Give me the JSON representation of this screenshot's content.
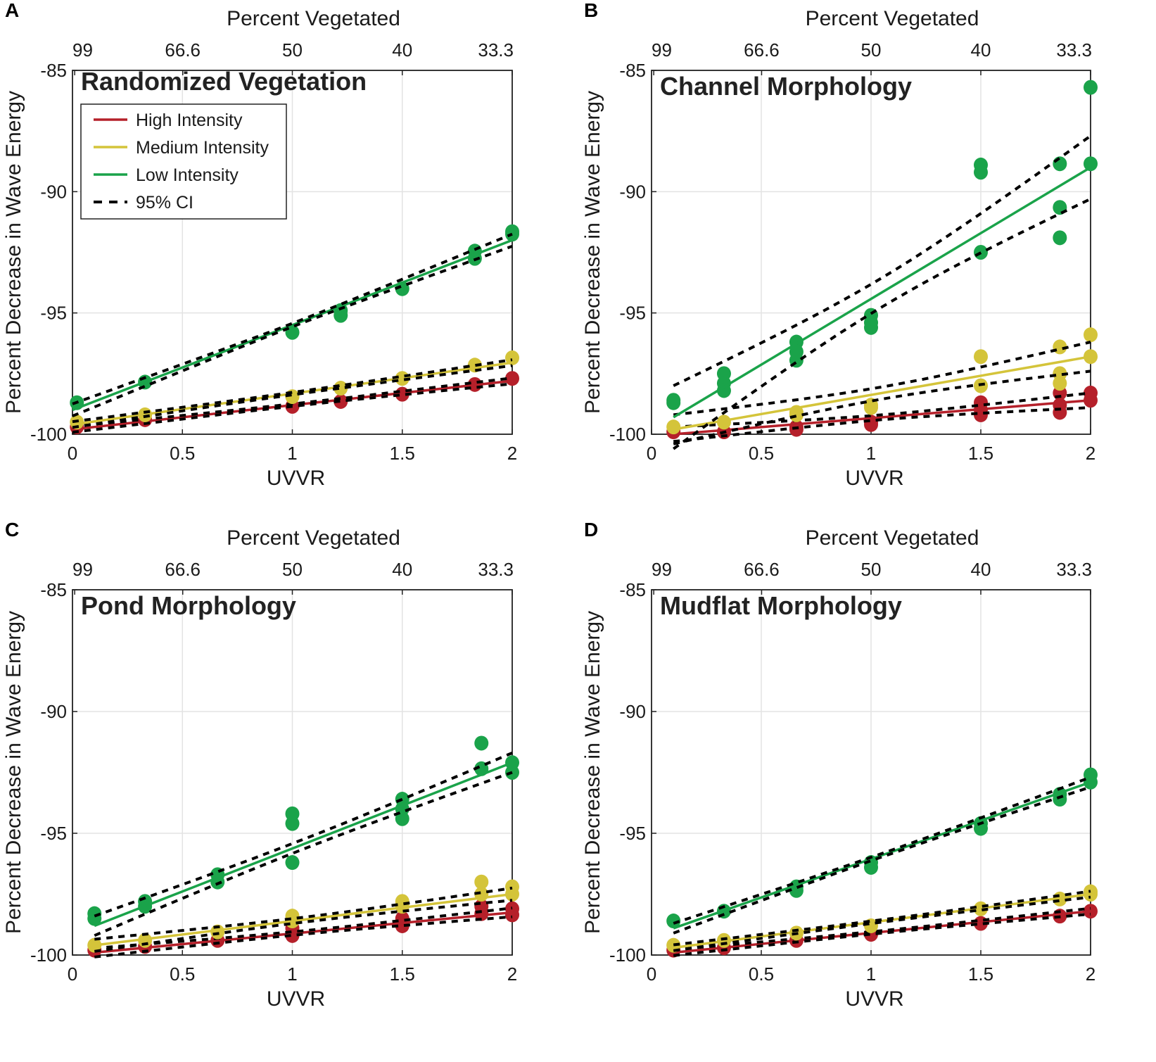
{
  "colors": {
    "High Intensity": "#b5202a",
    "Medium Intensity": "#d4c43a",
    "Low Intensity": "#1aa34a",
    "ci": "#000000",
    "grid": "#e3e3e3"
  },
  "legend": [
    "High Intensity",
    "Medium Intensity",
    "Low Intensity",
    "95% CI"
  ],
  "chart_data": [
    {
      "type": "scatter",
      "panel_letter": "A",
      "title": "Randomized Vegetation",
      "xlabel": "UVVR",
      "ylabel": "Percent Decrease in Wave Energy",
      "top_xlabel": "Percent Vegetated",
      "xlim": [
        0,
        2
      ],
      "ylim": [
        -100,
        -85
      ],
      "grid": true,
      "legend": "top-left",
      "xticks": [
        "0",
        "0.5",
        "1",
        "1.5",
        "2"
      ],
      "yticks": [
        "-85",
        "-90",
        "-95",
        "-100"
      ],
      "top_ticks": [
        "99",
        "66.6",
        "50",
        "40",
        "33.3"
      ],
      "series": [
        {
          "name": "High Intensity",
          "points": [
            [
              0.02,
              -99.7
            ],
            [
              0.33,
              -99.4
            ],
            [
              1,
              -98.85
            ],
            [
              1.22,
              -98.65
            ],
            [
              1.5,
              -98.35
            ],
            [
              1.83,
              -97.95
            ],
            [
              2,
              -97.7
            ]
          ],
          "fit": [
            [
              0,
              -99.8
            ],
            [
              2,
              -97.8
            ]
          ],
          "ci_halfwidth": [
            0.05,
            0.12
          ]
        },
        {
          "name": "Medium Intensity",
          "points": [
            [
              0.02,
              -99.5
            ],
            [
              0.33,
              -99.2
            ],
            [
              1,
              -98.45
            ],
            [
              1.22,
              -98.1
            ],
            [
              1.5,
              -97.7
            ],
            [
              1.83,
              -97.15
            ],
            [
              2,
              -96.85
            ]
          ],
          "fit": [
            [
              0,
              -99.6
            ],
            [
              2,
              -97.05
            ]
          ],
          "ci_halfwidth": [
            0.05,
            0.12
          ]
        },
        {
          "name": "Low Intensity",
          "points": [
            [
              0.02,
              -98.7
            ],
            [
              0.33,
              -97.85
            ],
            [
              1,
              -95.8
            ],
            [
              1.22,
              -95.1
            ],
            [
              1.22,
              -94.9
            ],
            [
              1.5,
              -94.0
            ],
            [
              1.83,
              -92.75
            ],
            [
              1.83,
              -92.45
            ],
            [
              2,
              -91.75
            ],
            [
              2,
              -91.65
            ]
          ],
          "fit": [
            [
              0,
              -99
            ],
            [
              2,
              -92
            ]
          ],
          "ci_halfwidth": [
            0.07,
            0.25
          ]
        }
      ]
    },
    {
      "type": "scatter",
      "panel_letter": "B",
      "title": "Channel Morphology",
      "xlabel": "UVVR",
      "ylabel": "Percent Decrease in Wave Energy",
      "top_xlabel": "Percent Vegetated",
      "xlim": [
        0,
        2
      ],
      "ylim": [
        -100,
        -85
      ],
      "grid": true,
      "xticks": [
        "0",
        "0.5",
        "1",
        "1.5",
        "2"
      ],
      "yticks": [
        "-85",
        "-90",
        "-95",
        "-100"
      ],
      "top_ticks": [
        "99",
        "66.6",
        "50",
        "40",
        "33.3"
      ],
      "series": [
        {
          "name": "High Intensity",
          "points": [
            [
              0.1,
              -99.9
            ],
            [
              0.33,
              -99.9
            ],
            [
              0.66,
              -99.7
            ],
            [
              0.66,
              -99.8
            ],
            [
              1,
              -99.5
            ],
            [
              1,
              -99.6
            ],
            [
              1.5,
              -98.7
            ],
            [
              1.5,
              -99.0
            ],
            [
              1.5,
              -99.2
            ],
            [
              1.86,
              -98.3
            ],
            [
              1.86,
              -98.8
            ],
            [
              1.86,
              -99.1
            ],
            [
              2,
              -98.3
            ],
            [
              2,
              -98.6
            ]
          ],
          "fit": [
            [
              0.1,
              -100
            ],
            [
              2,
              -98.6
            ]
          ],
          "ci_halfwidth": [
            0.1,
            0.3
          ]
        },
        {
          "name": "Medium Intensity",
          "points": [
            [
              0.1,
              -99.7
            ],
            [
              0.33,
              -99.5
            ],
            [
              0.66,
              -99.1
            ],
            [
              0.66,
              -99.2
            ],
            [
              1,
              -98.8
            ],
            [
              1,
              -98.9
            ],
            [
              1.5,
              -96.8
            ],
            [
              1.5,
              -98.0
            ],
            [
              1.86,
              -96.4
            ],
            [
              1.86,
              -97.5
            ],
            [
              1.86,
              -97.9
            ],
            [
              2,
              -95.9
            ],
            [
              2,
              -96.8
            ]
          ],
          "fit": [
            [
              0.1,
              -99.8
            ],
            [
              2,
              -96.8
            ]
          ],
          "ci_halfwidth": [
            0.25,
            0.6
          ]
        },
        {
          "name": "Low Intensity",
          "points": [
            [
              0.1,
              -98.6
            ],
            [
              0.1,
              -98.7
            ],
            [
              0.33,
              -97.5
            ],
            [
              0.33,
              -97.9
            ],
            [
              0.33,
              -98.2
            ],
            [
              0.66,
              -96.2
            ],
            [
              0.66,
              -96.6
            ],
            [
              0.66,
              -96.95
            ],
            [
              1,
              -95.1
            ],
            [
              1,
              -95.4
            ],
            [
              1,
              -95.6
            ],
            [
              1.5,
              -88.9
            ],
            [
              1.5,
              -89.2
            ],
            [
              1.5,
              -92.5
            ],
            [
              1.86,
              -88.85
            ],
            [
              1.86,
              -90.65
            ],
            [
              1.86,
              -91.9
            ],
            [
              2,
              -85.7
            ],
            [
              2,
              -88.85
            ]
          ],
          "fit": [
            [
              0.1,
              -99.3
            ],
            [
              2,
              -89
            ]
          ],
          "ci_halfwidth": [
            0.6,
            1.3
          ]
        }
      ]
    },
    {
      "type": "scatter",
      "panel_letter": "C",
      "title": "Pond Morphology",
      "xlabel": "UVVR",
      "ylabel": "Percent Decrease in Wave Energy",
      "top_xlabel": "Percent Vegetated",
      "xlim": [
        0,
        2
      ],
      "ylim": [
        -100,
        -85
      ],
      "grid": true,
      "xticks": [
        "0",
        "0.5",
        "1",
        "1.5",
        "2"
      ],
      "yticks": [
        "-85",
        "-90",
        "-95",
        "-100"
      ],
      "top_ticks": [
        "99",
        "66.6",
        "50",
        "40",
        "33.3"
      ],
      "series": [
        {
          "name": "High Intensity",
          "points": [
            [
              0.1,
              -99.8
            ],
            [
              0.33,
              -99.65
            ],
            [
              0.66,
              -99.4
            ],
            [
              1,
              -98.9
            ],
            [
              1,
              -99.2
            ],
            [
              1.5,
              -98.5
            ],
            [
              1.5,
              -98.8
            ],
            [
              1.86,
              -98.0
            ],
            [
              1.86,
              -98.3
            ],
            [
              2,
              -98.1
            ],
            [
              2,
              -98.35
            ]
          ],
          "fit": [
            [
              0.1,
              -99.9
            ],
            [
              2,
              -98.25
            ]
          ],
          "ci_halfwidth": [
            0.07,
            0.18
          ]
        },
        {
          "name": "Medium Intensity",
          "points": [
            [
              0.1,
              -99.6
            ],
            [
              0.33,
              -99.4
            ],
            [
              0.66,
              -99.05
            ],
            [
              1,
              -98.4
            ],
            [
              1,
              -98.6
            ],
            [
              1.5,
              -97.8
            ],
            [
              1.5,
              -98.0
            ],
            [
              1.86,
              -97.0
            ],
            [
              1.86,
              -97.5
            ],
            [
              2,
              -97.2
            ],
            [
              2,
              -97.5
            ]
          ],
          "fit": [
            [
              0.1,
              -99.6
            ],
            [
              2,
              -97.5
            ]
          ],
          "ci_halfwidth": [
            0.1,
            0.25
          ]
        },
        {
          "name": "Low Intensity",
          "points": [
            [
              0.1,
              -98.3
            ],
            [
              0.1,
              -98.5
            ],
            [
              0.33,
              -97.8
            ],
            [
              0.33,
              -98.0
            ],
            [
              0.66,
              -96.7
            ],
            [
              0.66,
              -97.0
            ],
            [
              1,
              -94.2
            ],
            [
              1,
              -94.6
            ],
            [
              1,
              -96.2
            ],
            [
              1.5,
              -93.6
            ],
            [
              1.5,
              -94.0
            ],
            [
              1.5,
              -94.4
            ],
            [
              1.86,
              -91.3
            ],
            [
              1.86,
              -92.35
            ],
            [
              2,
              -92.1
            ],
            [
              2,
              -92.5
            ]
          ],
          "fit": [
            [
              0.1,
              -98.8
            ],
            [
              2,
              -92.1
            ]
          ],
          "ci_halfwidth": [
            0.2,
            0.4
          ]
        }
      ]
    },
    {
      "type": "scatter",
      "panel_letter": "D",
      "title": "Mudflat Morphology",
      "xlabel": "UVVR",
      "ylabel": "Percent Decrease in Wave Energy",
      "top_xlabel": "Percent Vegetated",
      "xlim": [
        0,
        2
      ],
      "ylim": [
        -100,
        -85
      ],
      "grid": true,
      "xticks": [
        "0",
        "0.5",
        "1",
        "1.5",
        "2"
      ],
      "yticks": [
        "-85",
        "-90",
        "-95",
        "-100"
      ],
      "top_ticks": [
        "99",
        "66.6",
        "50",
        "40",
        "33.3"
      ],
      "series": [
        {
          "name": "High Intensity",
          "points": [
            [
              0.1,
              -99.8
            ],
            [
              0.33,
              -99.7
            ],
            [
              0.66,
              -99.4
            ],
            [
              1,
              -99.15
            ],
            [
              1.5,
              -98.7
            ],
            [
              1.86,
              -98.4
            ],
            [
              2,
              -98.2
            ]
          ],
          "fit": [
            [
              0.1,
              -99.9
            ],
            [
              2,
              -98.2
            ]
          ],
          "ci_halfwidth": [
            0.05,
            0.12
          ]
        },
        {
          "name": "Medium Intensity",
          "points": [
            [
              0.1,
              -99.6
            ],
            [
              0.33,
              -99.4
            ],
            [
              0.66,
              -99.1
            ],
            [
              1,
              -98.8
            ],
            [
              1.5,
              -98.1
            ],
            [
              1.86,
              -97.7
            ],
            [
              2,
              -97.4
            ],
            [
              2,
              -97.5
            ]
          ],
          "fit": [
            [
              0.1,
              -99.7
            ],
            [
              2,
              -97.5
            ]
          ],
          "ci_halfwidth": [
            0.05,
            0.12
          ]
        },
        {
          "name": "Low Intensity",
          "points": [
            [
              0.1,
              -98.6
            ],
            [
              0.33,
              -98.2
            ],
            [
              0.66,
              -97.2
            ],
            [
              0.66,
              -97.35
            ],
            [
              1,
              -96.2
            ],
            [
              1,
              -96.4
            ],
            [
              1.5,
              -94.6
            ],
            [
              1.5,
              -94.8
            ],
            [
              1.86,
              -93.4
            ],
            [
              1.86,
              -93.6
            ],
            [
              2,
              -92.6
            ],
            [
              2,
              -92.9
            ]
          ],
          "fit": [
            [
              0.1,
              -98.9
            ],
            [
              2,
              -92.9
            ]
          ],
          "ci_halfwidth": [
            0.07,
            0.2
          ]
        }
      ]
    }
  ]
}
